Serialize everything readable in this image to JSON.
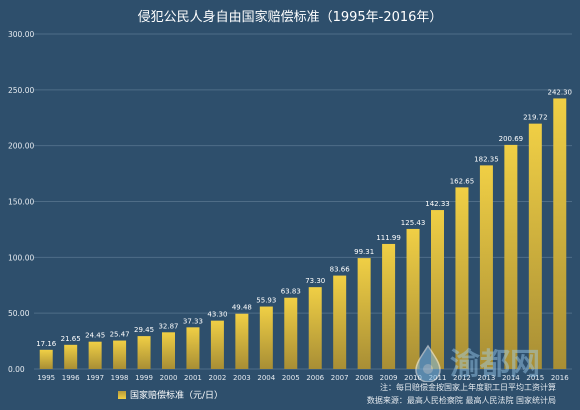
{
  "chart_data": {
    "type": "bar",
    "title": "侵犯公民人身自由国家赔偿标准（1995年-2016年）",
    "categories": [
      "1995",
      "1996",
      "1997",
      "1998",
      "1999",
      "2000",
      "2001",
      "2002",
      "2003",
      "2004",
      "2005",
      "2006",
      "2007",
      "2008",
      "2009",
      "2010",
      "2011",
      "2012",
      "2013",
      "2014",
      "2015",
      "2016"
    ],
    "series": [
      {
        "name": "国家赔偿标准（元/日）",
        "values": [
          17.16,
          21.65,
          24.45,
          25.47,
          29.45,
          32.87,
          37.33,
          43.3,
          49.48,
          55.93,
          63.83,
          73.3,
          83.66,
          99.31,
          111.99,
          125.43,
          142.33,
          162.65,
          182.35,
          200.69,
          219.72,
          242.3
        ],
        "labels": [
          "17.16",
          "21.65",
          "24.45",
          "25.47",
          "29.45",
          "32.87",
          "37.33",
          "43.30",
          "49.48",
          "55.93",
          "63.83",
          "73.30",
          "83.66",
          "99.31",
          "111.99",
          "125.43",
          "142.33",
          "162.65",
          "182.35",
          "200.69",
          "219.72",
          "242.30"
        ],
        "color": "#e8c440"
      }
    ],
    "yticks": [
      "0.00",
      "50.00",
      "100.00",
      "150.00",
      "200.00",
      "250.00",
      "300.00"
    ],
    "ylim": [
      0,
      300
    ],
    "grid": true,
    "legend_position": "bottom-left"
  },
  "notes": {
    "line1": "注：每日赔偿金按国家上年度职工日平均工资计算",
    "line2": "数据来源：最高人民检察院  最高人民法院  国家统计局"
  },
  "watermark": {
    "text": "渝都网",
    "logo_icon": "raindrop-logo"
  },
  "colors": {
    "background": "#2e4f6c",
    "bar_top": "#f0cf45",
    "bar_bottom": "#a88e35",
    "grid": "#4f6d87"
  }
}
